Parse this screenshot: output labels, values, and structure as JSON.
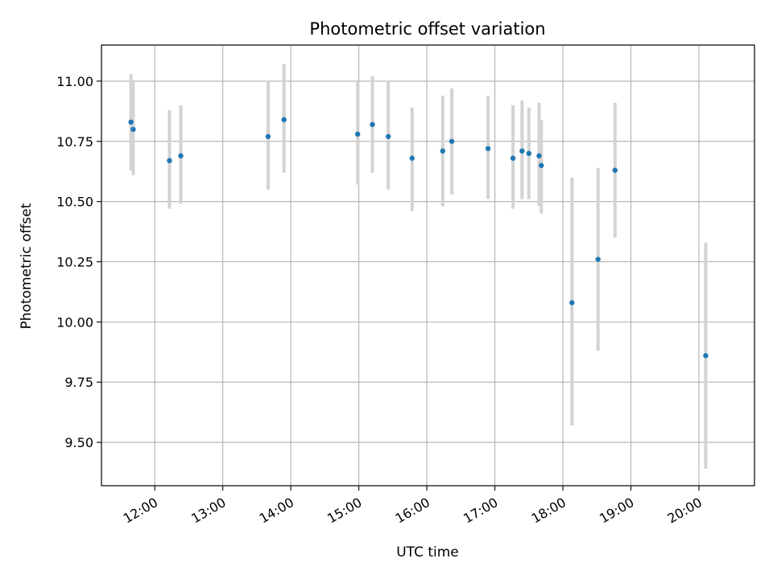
{
  "chart_data": {
    "type": "scatter",
    "title": "Photometric offset variation",
    "xlabel": "UTC time",
    "ylabel": "Photometric offset",
    "xlim": [
      "11:13",
      "20:49"
    ],
    "ylim": [
      9.32,
      11.15
    ],
    "x_ticks": [
      "12:00",
      "13:00",
      "14:00",
      "15:00",
      "16:00",
      "17:00",
      "18:00",
      "19:00",
      "20:00"
    ],
    "y_ticks": [
      9.5,
      9.75,
      10.0,
      10.25,
      10.5,
      10.75,
      11.0
    ],
    "y_tick_labels": [
      "9.50",
      "9.75",
      "10.00",
      "10.25",
      "10.50",
      "10.75",
      "11.00"
    ],
    "grid": true,
    "colors": {
      "points": "#1f77b4",
      "error_bars": "#d3d3d3",
      "grid": "#b0b0b0",
      "axes": "#000000"
    },
    "points": [
      {
        "x": "11:39",
        "y": 10.83,
        "low": 10.63,
        "high": 11.03
      },
      {
        "x": "11:41",
        "y": 10.8,
        "low": 10.61,
        "high": 11.0
      },
      {
        "x": "12:13",
        "y": 10.67,
        "low": 10.47,
        "high": 10.88
      },
      {
        "x": "12:23",
        "y": 10.69,
        "low": 10.49,
        "high": 10.9
      },
      {
        "x": "13:40",
        "y": 10.77,
        "low": 10.55,
        "high": 11.0
      },
      {
        "x": "13:54",
        "y": 10.84,
        "low": 10.62,
        "high": 11.07
      },
      {
        "x": "14:59",
        "y": 10.78,
        "low": 10.57,
        "high": 11.0
      },
      {
        "x": "15:12",
        "y": 10.82,
        "low": 10.62,
        "high": 11.02
      },
      {
        "x": "15:26",
        "y": 10.77,
        "low": 10.55,
        "high": 11.0
      },
      {
        "x": "15:47",
        "y": 10.68,
        "low": 10.46,
        "high": 10.89
      },
      {
        "x": "16:14",
        "y": 10.71,
        "low": 10.48,
        "high": 10.94
      },
      {
        "x": "16:22",
        "y": 10.75,
        "low": 10.53,
        "high": 10.97
      },
      {
        "x": "16:54",
        "y": 10.72,
        "low": 10.51,
        "high": 10.94
      },
      {
        "x": "17:16",
        "y": 10.68,
        "low": 10.47,
        "high": 10.9
      },
      {
        "x": "17:24",
        "y": 10.71,
        "low": 10.51,
        "high": 10.92
      },
      {
        "x": "17:30",
        "y": 10.7,
        "low": 10.51,
        "high": 10.89
      },
      {
        "x": "17:39",
        "y": 10.69,
        "low": 10.48,
        "high": 10.91
      },
      {
        "x": "17:41",
        "y": 10.65,
        "low": 10.45,
        "high": 10.84
      },
      {
        "x": "18:08",
        "y": 10.08,
        "low": 9.57,
        "high": 10.6
      },
      {
        "x": "18:31",
        "y": 10.26,
        "low": 9.88,
        "high": 10.64
      },
      {
        "x": "18:46",
        "y": 10.63,
        "low": 10.35,
        "high": 10.91
      },
      {
        "x": "20:06",
        "y": 9.86,
        "low": 9.39,
        "high": 10.33
      }
    ]
  }
}
